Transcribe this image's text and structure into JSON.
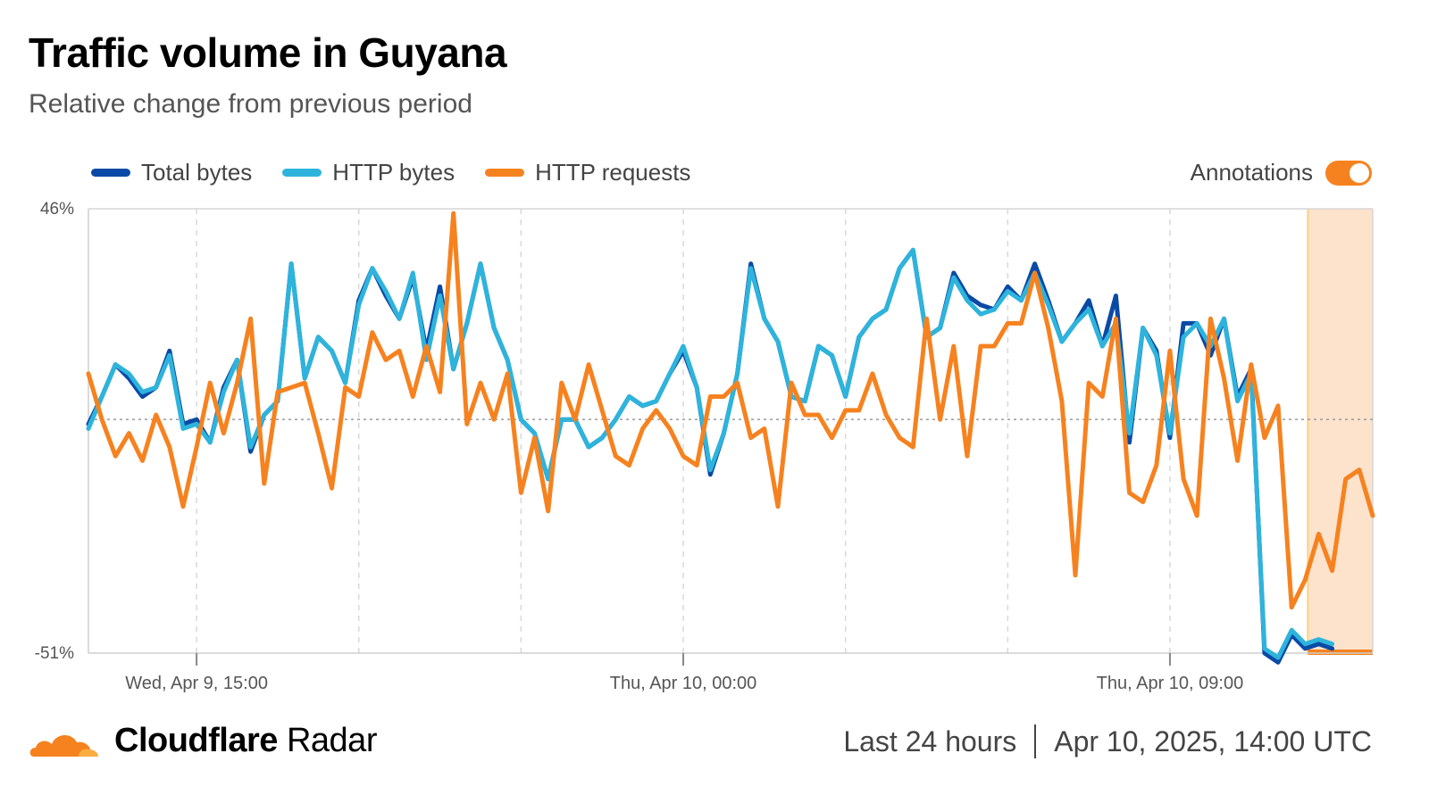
{
  "header": {
    "title": "Traffic volume in Guyana",
    "subtitle": "Relative change from previous period"
  },
  "legend": {
    "items": [
      {
        "label": "Total bytes",
        "color": "#0a4aa6"
      },
      {
        "label": "HTTP bytes",
        "color": "#2eb4dc"
      },
      {
        "label": "HTTP requests",
        "color": "#f6821f"
      }
    ],
    "annotations_label": "Annotations",
    "annotations_on": true
  },
  "footer": {
    "brand_bold": "Cloudflare",
    "brand_rest": "Radar",
    "range": "Last 24 hours",
    "timestamp": "Apr 10, 2025, 14:00 UTC"
  },
  "chart_data": {
    "type": "line",
    "y_labels": [
      "46%",
      "-51%"
    ],
    "ylim": [
      -51,
      46
    ],
    "x_tick_labels": [
      {
        "label": "Wed, Apr 9, 15:00",
        "index": 8
      },
      {
        "label": "Thu, Apr 10, 00:00",
        "index": 44
      },
      {
        "label": "Thu, Apr 10, 09:00",
        "index": 80
      }
    ],
    "num_points": 96,
    "annotation_range": [
      90,
      95
    ],
    "baseline": 0,
    "series": [
      {
        "name": "Total bytes",
        "color": "#0a4aa6",
        "values": [
          -1,
          5,
          12,
          9,
          5,
          7,
          15,
          -1,
          0,
          -5,
          7,
          13,
          -7,
          1,
          4,
          34,
          9,
          18,
          15,
          8,
          26,
          33,
          27,
          22,
          31,
          15,
          29,
          11,
          21,
          34,
          20,
          13,
          0,
          -3,
          -13,
          0,
          0,
          -6,
          -4,
          0,
          5,
          3,
          4,
          10,
          15,
          7,
          -12,
          -3,
          10,
          34,
          22,
          17,
          5,
          4,
          16,
          14,
          5,
          18,
          22,
          24,
          33,
          37,
          18,
          20,
          32,
          27,
          25,
          24,
          29,
          26,
          34,
          26,
          17,
          21,
          26,
          16,
          27,
          -5,
          20,
          15,
          -4,
          21,
          21,
          14,
          22,
          5,
          11,
          -51,
          -53,
          -47,
          -50,
          -49,
          -50
        ]
      },
      {
        "name": "HTTP bytes",
        "color": "#2eb4dc",
        "values": [
          -2,
          5,
          12,
          10,
          6,
          7,
          14,
          -2,
          -1,
          -5,
          6,
          13,
          -6,
          1,
          4,
          34,
          9,
          18,
          15,
          8,
          25,
          33,
          28,
          22,
          32,
          13,
          27,
          11,
          21,
          34,
          20,
          13,
          0,
          -3,
          -13,
          0,
          0,
          -6,
          -4,
          0,
          5,
          3,
          4,
          10,
          16,
          7,
          -11,
          -3,
          10,
          33,
          22,
          17,
          5,
          4,
          16,
          14,
          5,
          18,
          22,
          24,
          33,
          37,
          18,
          20,
          31,
          26,
          23,
          24,
          28,
          26,
          32,
          25,
          17,
          21,
          24,
          16,
          21,
          -3,
          20,
          14,
          -3,
          18,
          21,
          16,
          22,
          4,
          10,
          -50,
          -52,
          -46,
          -49,
          -48,
          -49
        ]
      },
      {
        "name": "HTTP requests",
        "color": "#f6821f",
        "values": [
          10,
          0,
          -8,
          -3,
          -9,
          1,
          -6,
          -19,
          -6,
          8,
          -3,
          8,
          22,
          -14,
          6,
          7,
          8,
          -3,
          -15,
          7,
          5,
          19,
          13,
          15,
          5,
          16,
          6,
          45,
          -1,
          8,
          0,
          10,
          -16,
          -4,
          -20,
          8,
          0,
          12,
          2,
          -8,
          -10,
          -2,
          2,
          -2,
          -8,
          -10,
          5,
          5,
          8,
          -4,
          -2,
          -19,
          8,
          1,
          1,
          -4,
          2,
          2,
          10,
          1,
          -4,
          -6,
          22,
          0,
          16,
          -8,
          16,
          16,
          21,
          21,
          32,
          20,
          4,
          -34,
          8,
          5,
          22,
          -16,
          -18,
          -10,
          15,
          -13,
          -21,
          22,
          9,
          -9,
          12,
          -4,
          3,
          -41,
          -35,
          -25,
          -33,
          -13,
          -11,
          -21
        ]
      }
    ]
  }
}
